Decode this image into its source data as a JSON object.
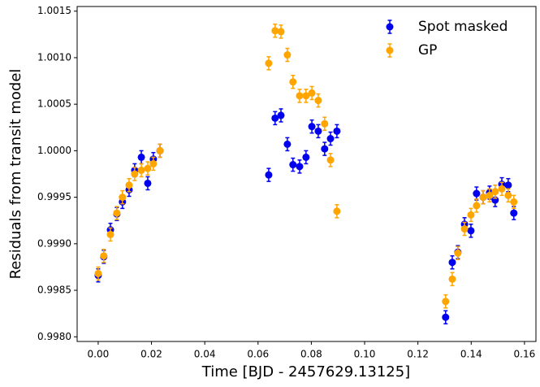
{
  "chart_data": {
    "type": "scatter",
    "xlabel": "Time [BJD - 2457629.13125]",
    "ylabel": "Residuals from transit model",
    "x": [
      0.0,
      0.0021,
      0.0046,
      0.007,
      0.0091,
      0.0116,
      0.0137,
      0.0162,
      0.0186,
      0.0207,
      0.0232,
      0.064,
      0.0664,
      0.0686,
      0.071,
      0.0731,
      0.0756,
      0.078,
      0.0802,
      0.0826,
      0.085,
      0.0872,
      0.0896,
      0.1304,
      0.1329,
      0.135,
      0.1375,
      0.1399,
      0.142,
      0.1445,
      0.1469,
      0.149,
      0.1515,
      0.1539,
      0.156
    ],
    "series": [
      {
        "name": "Spot masked",
        "color": "#0000ee",
        "error": 7e-05,
        "values": [
          0.99866,
          0.99886,
          0.99915,
          0.99932,
          0.99945,
          0.99958,
          0.99979,
          0.99993,
          0.99965,
          0.99991,
          1.0,
          0.99974,
          1.00035,
          1.00038,
          1.00007,
          0.99985,
          0.99983,
          0.99993,
          1.00026,
          1.00021,
          1.00002,
          1.00013,
          1.00021,
          0.99821,
          0.9988,
          0.99891,
          0.99921,
          0.99914,
          0.99954,
          0.9995,
          0.99955,
          0.99947,
          0.99964,
          0.99963,
          0.99933
        ]
      },
      {
        "name": "GP",
        "color": "#ffa500",
        "error": 7e-05,
        "values": [
          0.99868,
          0.99887,
          0.9991,
          0.99933,
          0.9995,
          0.99963,
          0.99975,
          0.99979,
          0.99981,
          0.99986,
          1.0,
          1.00094,
          1.00129,
          1.00128,
          1.00103,
          1.00074,
          1.00059,
          1.00059,
          1.00062,
          1.00054,
          1.00029,
          0.9999,
          0.99935,
          0.99838,
          0.99862,
          0.9989,
          0.99916,
          0.99931,
          0.99941,
          0.9995,
          0.99952,
          0.99956,
          0.99959,
          0.99952,
          0.99945
        ]
      }
    ],
    "xlim": [
      -0.0079,
      0.1643
    ],
    "ylim": [
      0.99795,
      1.00155
    ],
    "xticks": [
      {
        "value": 0,
        "label": "0.00"
      },
      {
        "value": 0.02,
        "label": "0.02"
      },
      {
        "value": 0.04,
        "label": "0.04"
      },
      {
        "value": 0.06,
        "label": "0.06"
      },
      {
        "value": 0.08,
        "label": "0.08"
      },
      {
        "value": 0.1,
        "label": "0.10"
      },
      {
        "value": 0.12,
        "label": "0.12"
      },
      {
        "value": 0.14,
        "label": "0.14"
      },
      {
        "value": 0.16,
        "label": "0.16"
      }
    ],
    "yticks": [
      {
        "value": 0.998,
        "label": "0.9980"
      },
      {
        "value": 0.9985,
        "label": "0.9985"
      },
      {
        "value": 0.999,
        "label": "0.9990"
      },
      {
        "value": 0.9995,
        "label": "0.9995"
      },
      {
        "value": 1,
        "label": "1.0000"
      },
      {
        "value": 1.0005,
        "label": "1.0005"
      },
      {
        "value": 1.001,
        "label": "1.0010"
      },
      {
        "value": 1.0015,
        "label": "1.0015"
      }
    ],
    "legend": "upper right",
    "grid": false
  }
}
